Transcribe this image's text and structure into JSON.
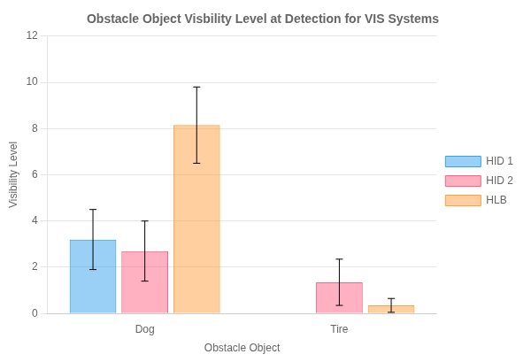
{
  "chart_data": {
    "type": "bar",
    "title": "Obstacle Object Visbility Level at Detection for VIS Systems",
    "xlabel": "Obstacle Object",
    "ylabel": "Visibility Level",
    "categories": [
      "Dog",
      "Tire"
    ],
    "series": [
      {
        "name": "HID 1",
        "values": [
          3.2,
          0.02
        ],
        "errors": [
          1.3,
          0.0
        ]
      },
      {
        "name": "HID 2",
        "values": [
          2.7,
          1.35
        ],
        "errors": [
          1.3,
          1.0
        ]
      },
      {
        "name": "HLB",
        "values": [
          8.15,
          0.35
        ],
        "errors": [
          1.65,
          0.3
        ]
      }
    ],
    "ylim": [
      0,
      12
    ],
    "yticks": [
      0,
      2,
      4,
      6,
      8,
      10,
      12
    ],
    "grid": true,
    "legend": "right"
  }
}
